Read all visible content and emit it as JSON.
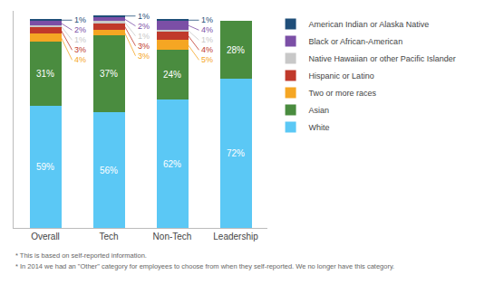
{
  "chart_data": {
    "type": "bar",
    "stacked": true,
    "categories": [
      "Overall",
      "Tech",
      "Non-Tech",
      "Leadership"
    ],
    "series": [
      {
        "name": "White",
        "color": "#5bc8f5",
        "values": [
          59,
          56,
          62,
          72
        ],
        "value_labels": [
          "59%",
          "56%",
          "62%",
          "72%"
        ]
      },
      {
        "name": "Asian",
        "color": "#4a8c3f",
        "values": [
          31,
          37,
          24,
          28
        ],
        "value_labels": [
          "31%",
          "37%",
          "24%",
          "28%"
        ]
      },
      {
        "name": "Two or more races",
        "color": "#f5a623",
        "values": [
          4,
          3,
          5,
          0
        ],
        "value_labels": [
          "4%",
          "3%",
          "5%",
          null
        ]
      },
      {
        "name": "Hispanic or Latino",
        "color": "#c0392b",
        "values": [
          3,
          3,
          4,
          0
        ],
        "value_labels": [
          "3%",
          "3%",
          "4%",
          null
        ]
      },
      {
        "name": "Native Hawaiian or other Pacific Islander",
        "color": "#c8c8c8",
        "values": [
          1,
          1,
          1,
          0
        ],
        "value_labels": [
          "1%",
          "1%",
          "1%",
          null
        ]
      },
      {
        "name": "Black or African-American",
        "color": "#7b4fa6",
        "values": [
          2,
          2,
          4,
          0
        ],
        "value_labels": [
          "2%",
          "2%",
          "4%",
          null
        ]
      },
      {
        "name": "American Indian or Alaska Native",
        "color": "#1f4e79",
        "values": [
          1,
          1,
          1,
          0
        ],
        "value_labels": [
          "1%",
          "1%",
          "1%",
          null
        ]
      }
    ],
    "ylim": [
      0,
      105
    ],
    "tick_labels": "x",
    "grid": false,
    "legend": "right",
    "data_labels": true,
    "annotations": [
      "* This is based on self-reported information.",
      "* In 2014 we had an \"Other\" category for employees to choose from when they self-reported. We no longer have this category."
    ]
  }
}
